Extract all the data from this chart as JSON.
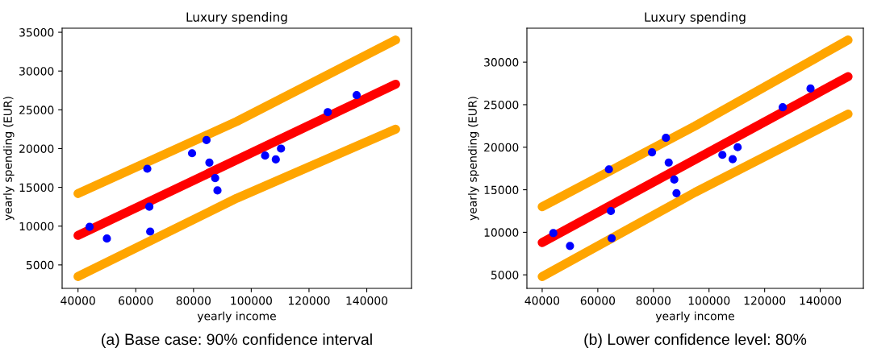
{
  "chart_data": [
    {
      "type": "scatter",
      "title": "Luxury spending",
      "xlabel": "yearly income",
      "ylabel": "yearly spending (EUR)",
      "annotations": [
        "(a) Base case: 90% confidence interval"
      ],
      "xlim": [
        34500,
        155500
      ],
      "ylim": [
        1975,
        35525
      ],
      "xticks": [
        40000,
        60000,
        80000,
        100000,
        120000,
        140000
      ],
      "yticks": [
        5000,
        10000,
        15000,
        20000,
        25000,
        30000,
        35000
      ],
      "grid": false,
      "legend": false,
      "series": [
        {
          "type": "line",
          "color": "#ffa500",
          "x": [
            40000,
            95000,
            150000
          ],
          "values": [
            14200,
            23500,
            34000
          ]
        },
        {
          "type": "line",
          "color": "#ffa500",
          "x": [
            40000,
            95000,
            150000
          ],
          "values": [
            3500,
            13600,
            22500
          ]
        },
        {
          "type": "line",
          "color": "#ff0000",
          "x": [
            40000,
            150000
          ],
          "values": [
            8800,
            28300
          ]
        },
        {
          "marker": "circle",
          "color": "#0000ff",
          "x": [
            44000,
            50000,
            64000,
            64700,
            65000,
            79500,
            84500,
            85500,
            87500,
            88300,
            104800,
            108500,
            110300,
            126500,
            136500
          ],
          "values": [
            9900,
            8400,
            17400,
            12500,
            9300,
            19400,
            21100,
            18200,
            16200,
            14600,
            19100,
            18600,
            20000,
            24700,
            26900
          ]
        }
      ]
    },
    {
      "type": "scatter",
      "title": "Luxury spending",
      "xlabel": "yearly income",
      "ylabel": "yearly spending (EUR)",
      "annotations": [
        "(b) Lower confidence level: 80%"
      ],
      "xlim": [
        34500,
        155500
      ],
      "ylim": [
        3410,
        33990
      ],
      "xticks": [
        40000,
        60000,
        80000,
        100000,
        120000,
        140000
      ],
      "yticks": [
        5000,
        10000,
        15000,
        20000,
        25000,
        30000
      ],
      "grid": false,
      "legend": false,
      "series": [
        {
          "type": "line",
          "color": "#ffa500",
          "x": [
            40000,
            95000,
            150000
          ],
          "values": [
            13000,
            22500,
            32600
          ]
        },
        {
          "type": "line",
          "color": "#ffa500",
          "x": [
            40000,
            95000,
            150000
          ],
          "values": [
            4800,
            14700,
            23900
          ]
        },
        {
          "type": "line",
          "color": "#ff0000",
          "x": [
            40000,
            150000
          ],
          "values": [
            8800,
            28300
          ]
        },
        {
          "marker": "circle",
          "color": "#0000ff",
          "x": [
            44000,
            50000,
            64000,
            64700,
            65000,
            79500,
            84500,
            85500,
            87500,
            88300,
            104800,
            108500,
            110300,
            126500,
            136500
          ],
          "values": [
            9900,
            8400,
            17400,
            12500,
            9300,
            19400,
            21100,
            18200,
            16200,
            14600,
            19100,
            18600,
            20000,
            24700,
            26900
          ]
        }
      ]
    }
  ]
}
